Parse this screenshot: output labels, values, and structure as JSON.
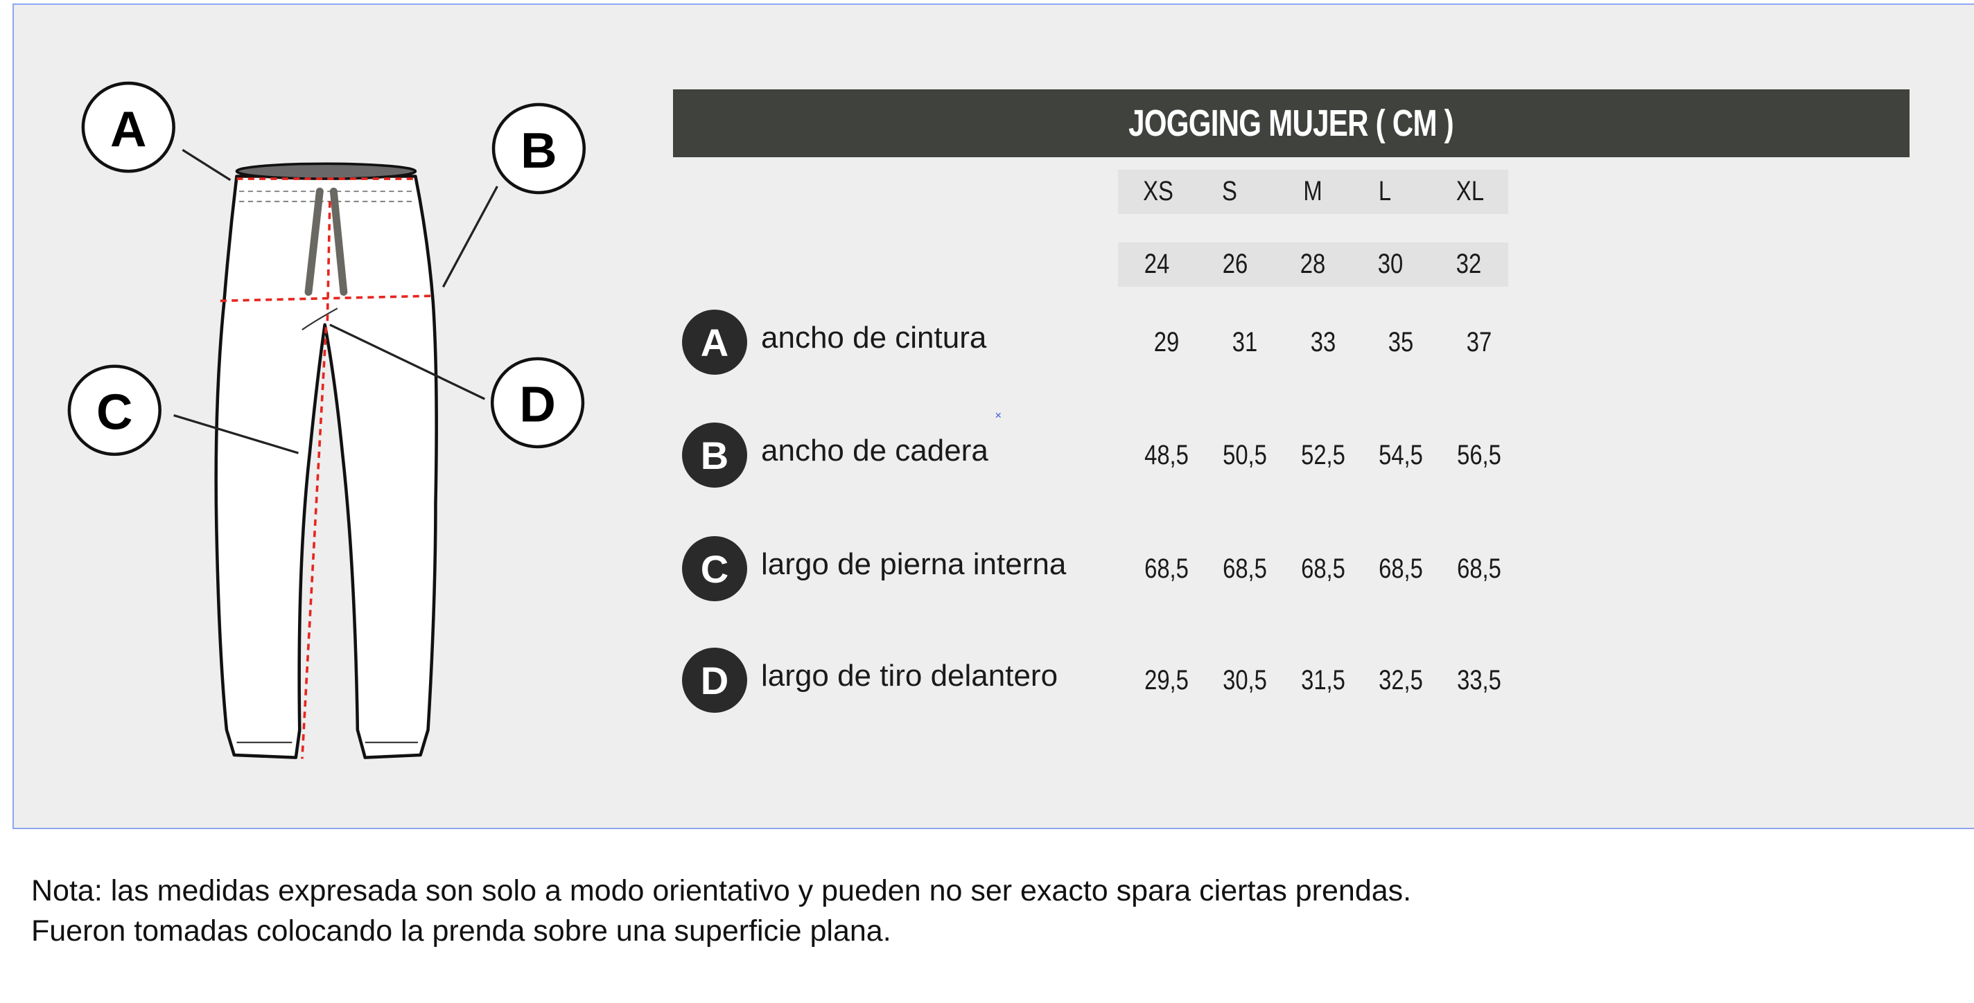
{
  "title": "JOGGING MUJER ( CM )",
  "diagram": {
    "labels": [
      "A",
      "B",
      "C",
      "D"
    ]
  },
  "table": {
    "sizes": [
      "XS",
      "S",
      "M",
      "L",
      "XL"
    ],
    "size_numbers": [
      "24",
      "26",
      "28",
      "30",
      "32"
    ],
    "rows": [
      {
        "key": "A",
        "label": "ancho de cintura",
        "values": [
          "29",
          "31",
          "33",
          "35",
          "37"
        ]
      },
      {
        "key": "B",
        "label": "ancho de cadera",
        "values": [
          "48,5",
          "50,5",
          "52,5",
          "54,5",
          "56,5"
        ]
      },
      {
        "key": "C",
        "label": "largo de pierna interna",
        "values": [
          "68,5",
          "68,5",
          "68,5",
          "68,5",
          "68,5"
        ]
      },
      {
        "key": "D",
        "label": "largo de tiro delantero",
        "values": [
          "29,5",
          "30,5",
          "31,5",
          "32,5",
          "33,5"
        ]
      }
    ]
  },
  "note": {
    "line1": "Nota: las medidas expresada son solo a modo orientativo y pueden no ser exacto spara ciertas prendas.",
    "line2": "Fueron tomadas colocando la prenda sobre una superficie plana."
  },
  "colors": {
    "header_bg": "#3f423d",
    "panel_bg": "#eeeeee",
    "panel_border": "#8ea6f2",
    "measure_line": "#e8251f",
    "badge_bg": "#2a2a2a"
  }
}
